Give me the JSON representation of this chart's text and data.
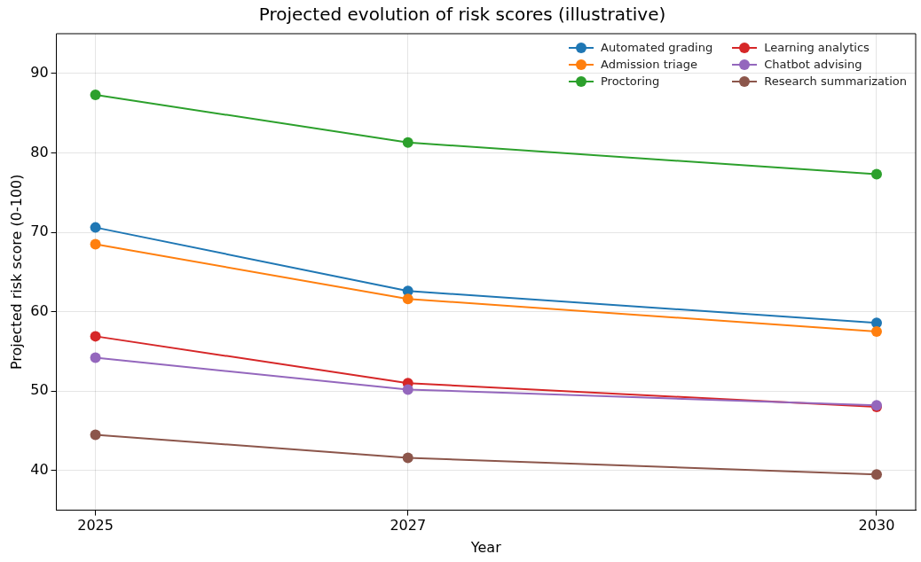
{
  "chart_data": {
    "type": "line",
    "title": "Projected evolution of risk scores (illustrative)",
    "xlabel": "Year",
    "ylabel": "Projected risk score (0-100)",
    "x": [
      2025,
      2027,
      2030
    ],
    "xlim": [
      2024.75,
      2030.25
    ],
    "xticks": [
      2025,
      2027,
      2030
    ],
    "ylim": [
      35,
      95
    ],
    "yticks": [
      40,
      50,
      60,
      70,
      80,
      90
    ],
    "grid": true,
    "legend": "top right",
    "marker": "circle",
    "line_style": "solid",
    "series": [
      {
        "name": "Automated grading",
        "color": "#1f77b4",
        "values": [
          70.6,
          62.6,
          58.6
        ]
      },
      {
        "name": "Admission triage",
        "color": "#ff7f0e",
        "values": [
          68.5,
          61.6,
          57.5
        ]
      },
      {
        "name": "Proctoring",
        "color": "#2ca02c",
        "values": [
          87.3,
          81.3,
          77.3
        ]
      },
      {
        "name": "Learning analytics",
        "color": "#d62728",
        "values": [
          56.9,
          51.0,
          48.0
        ]
      },
      {
        "name": "Chatbot advising",
        "color": "#9467bd",
        "values": [
          54.2,
          50.2,
          48.2
        ]
      },
      {
        "name": "Research summarization",
        "color": "#8c564b",
        "values": [
          44.5,
          41.6,
          39.5
        ]
      }
    ]
  }
}
